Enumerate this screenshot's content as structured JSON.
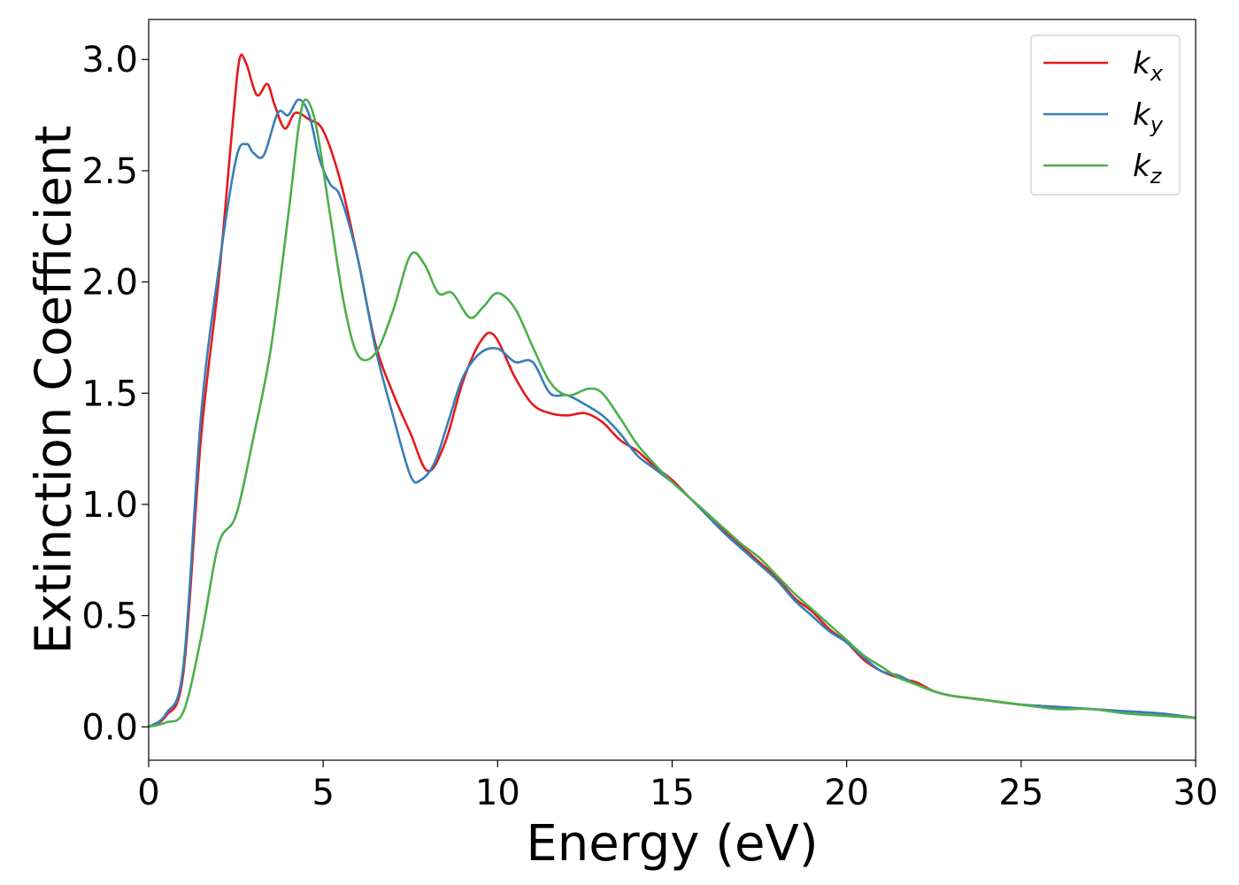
{
  "chart_data": {
    "type": "line",
    "xlabel": "Energy (eV)",
    "ylabel": "Extinction Coefficient",
    "xlim": [
      0,
      30
    ],
    "ylim": [
      -0.15,
      3.18
    ],
    "xticks": [
      0,
      5,
      10,
      15,
      20,
      25,
      30
    ],
    "yticks": [
      0.0,
      0.5,
      1.0,
      1.5,
      2.0,
      2.5,
      3.0
    ],
    "xtick_labels": [
      "0",
      "5",
      "10",
      "15",
      "20",
      "25",
      "30"
    ],
    "ytick_labels": [
      "0.0",
      "0.5",
      "1.0",
      "1.5",
      "2.0",
      "2.5",
      "3.0"
    ],
    "grid": false,
    "legend_position": "top-right",
    "series": [
      {
        "name": "k",
        "subscript": "x",
        "color": "#e41a1c",
        "points": [
          [
            0,
            0.0
          ],
          [
            0.5,
            0.05
          ],
          [
            1.0,
            0.25
          ],
          [
            1.5,
            1.3
          ],
          [
            2.0,
            2.0
          ],
          [
            2.4,
            2.7
          ],
          [
            2.6,
            3.0
          ],
          [
            2.8,
            2.98
          ],
          [
            3.1,
            2.84
          ],
          [
            3.4,
            2.89
          ],
          [
            3.6,
            2.8
          ],
          [
            3.9,
            2.69
          ],
          [
            4.2,
            2.76
          ],
          [
            4.6,
            2.73
          ],
          [
            5.0,
            2.68
          ],
          [
            5.5,
            2.45
          ],
          [
            6.0,
            2.1
          ],
          [
            6.5,
            1.72
          ],
          [
            7.0,
            1.5
          ],
          [
            7.5,
            1.32
          ],
          [
            8.0,
            1.15
          ],
          [
            8.5,
            1.28
          ],
          [
            9.0,
            1.55
          ],
          [
            9.5,
            1.73
          ],
          [
            9.9,
            1.76
          ],
          [
            10.5,
            1.57
          ],
          [
            11.0,
            1.45
          ],
          [
            11.5,
            1.41
          ],
          [
            12.0,
            1.4
          ],
          [
            12.5,
            1.41
          ],
          [
            13.0,
            1.37
          ],
          [
            13.5,
            1.29
          ],
          [
            14.0,
            1.24
          ],
          [
            14.5,
            1.17
          ],
          [
            15.0,
            1.11
          ],
          [
            15.5,
            1.03
          ],
          [
            16.0,
            0.96
          ],
          [
            16.5,
            0.88
          ],
          [
            17.0,
            0.81
          ],
          [
            17.5,
            0.74
          ],
          [
            18.0,
            0.67
          ],
          [
            18.5,
            0.58
          ],
          [
            19.0,
            0.52
          ],
          [
            19.5,
            0.44
          ],
          [
            20.0,
            0.38
          ],
          [
            20.5,
            0.3
          ],
          [
            21.0,
            0.25
          ],
          [
            21.5,
            0.22
          ],
          [
            22.0,
            0.2
          ],
          [
            22.5,
            0.16
          ],
          [
            23.0,
            0.14
          ],
          [
            24.0,
            0.12
          ],
          [
            25.0,
            0.1
          ],
          [
            26.0,
            0.09
          ],
          [
            27.0,
            0.08
          ],
          [
            28.0,
            0.07
          ],
          [
            29.0,
            0.06
          ],
          [
            30.0,
            0.04
          ]
        ]
      },
      {
        "name": "k",
        "subscript": "y",
        "color": "#377eb8",
        "points": [
          [
            0,
            0.0
          ],
          [
            0.5,
            0.06
          ],
          [
            1.0,
            0.28
          ],
          [
            1.5,
            1.4
          ],
          [
            2.0,
            2.05
          ],
          [
            2.5,
            2.55
          ],
          [
            2.8,
            2.62
          ],
          [
            3.0,
            2.58
          ],
          [
            3.3,
            2.57
          ],
          [
            3.7,
            2.76
          ],
          [
            4.0,
            2.75
          ],
          [
            4.3,
            2.82
          ],
          [
            4.6,
            2.75
          ],
          [
            4.9,
            2.55
          ],
          [
            5.2,
            2.44
          ],
          [
            5.5,
            2.38
          ],
          [
            6.0,
            2.1
          ],
          [
            6.5,
            1.7
          ],
          [
            7.0,
            1.4
          ],
          [
            7.5,
            1.13
          ],
          [
            7.8,
            1.11
          ],
          [
            8.2,
            1.19
          ],
          [
            8.6,
            1.38
          ],
          [
            9.0,
            1.57
          ],
          [
            9.5,
            1.68
          ],
          [
            10.0,
            1.7
          ],
          [
            10.5,
            1.64
          ],
          [
            11.0,
            1.64
          ],
          [
            11.5,
            1.5
          ],
          [
            12.0,
            1.49
          ],
          [
            12.5,
            1.45
          ],
          [
            13.0,
            1.4
          ],
          [
            13.5,
            1.32
          ],
          [
            14.0,
            1.22
          ],
          [
            14.5,
            1.16
          ],
          [
            15.0,
            1.1
          ],
          [
            15.5,
            1.03
          ],
          [
            16.0,
            0.95
          ],
          [
            16.5,
            0.87
          ],
          [
            17.0,
            0.8
          ],
          [
            17.5,
            0.73
          ],
          [
            18.0,
            0.66
          ],
          [
            18.5,
            0.57
          ],
          [
            19.0,
            0.5
          ],
          [
            19.5,
            0.43
          ],
          [
            20.0,
            0.38
          ],
          [
            20.5,
            0.31
          ],
          [
            21.0,
            0.25
          ],
          [
            21.5,
            0.23
          ],
          [
            22.0,
            0.19
          ],
          [
            22.5,
            0.16
          ],
          [
            23.0,
            0.14
          ],
          [
            24.0,
            0.12
          ],
          [
            25.0,
            0.1
          ],
          [
            26.0,
            0.09
          ],
          [
            27.0,
            0.08
          ],
          [
            28.0,
            0.07
          ],
          [
            29.0,
            0.06
          ],
          [
            30.0,
            0.04
          ]
        ]
      },
      {
        "name": "k",
        "subscript": "z",
        "color": "#4daf4a",
        "points": [
          [
            0,
            0.0
          ],
          [
            0.5,
            0.02
          ],
          [
            1.0,
            0.07
          ],
          [
            1.5,
            0.4
          ],
          [
            2.0,
            0.82
          ],
          [
            2.5,
            0.95
          ],
          [
            3.0,
            1.3
          ],
          [
            3.5,
            1.7
          ],
          [
            4.0,
            2.3
          ],
          [
            4.3,
            2.7
          ],
          [
            4.5,
            2.82
          ],
          [
            4.8,
            2.7
          ],
          [
            5.2,
            2.3
          ],
          [
            5.6,
            1.9
          ],
          [
            6.0,
            1.67
          ],
          [
            6.5,
            1.68
          ],
          [
            7.0,
            1.87
          ],
          [
            7.5,
            2.12
          ],
          [
            7.9,
            2.08
          ],
          [
            8.3,
            1.95
          ],
          [
            8.7,
            1.95
          ],
          [
            9.2,
            1.84
          ],
          [
            9.6,
            1.89
          ],
          [
            10.0,
            1.95
          ],
          [
            10.5,
            1.88
          ],
          [
            11.0,
            1.71
          ],
          [
            11.5,
            1.55
          ],
          [
            12.0,
            1.49
          ],
          [
            12.6,
            1.52
          ],
          [
            13.0,
            1.5
          ],
          [
            13.5,
            1.39
          ],
          [
            14.0,
            1.27
          ],
          [
            14.5,
            1.18
          ],
          [
            15.0,
            1.1
          ],
          [
            15.5,
            1.03
          ],
          [
            16.0,
            0.96
          ],
          [
            16.5,
            0.89
          ],
          [
            17.0,
            0.82
          ],
          [
            17.5,
            0.76
          ],
          [
            18.0,
            0.68
          ],
          [
            18.5,
            0.6
          ],
          [
            19.0,
            0.53
          ],
          [
            19.5,
            0.46
          ],
          [
            20.0,
            0.39
          ],
          [
            20.5,
            0.32
          ],
          [
            21.0,
            0.27
          ],
          [
            21.5,
            0.22
          ],
          [
            22.0,
            0.19
          ],
          [
            22.5,
            0.16
          ],
          [
            23.0,
            0.14
          ],
          [
            24.0,
            0.12
          ],
          [
            25.0,
            0.1
          ],
          [
            26.0,
            0.08
          ],
          [
            27.0,
            0.08
          ],
          [
            28.0,
            0.06
          ],
          [
            29.0,
            0.05
          ],
          [
            30.0,
            0.04
          ]
        ]
      }
    ]
  }
}
